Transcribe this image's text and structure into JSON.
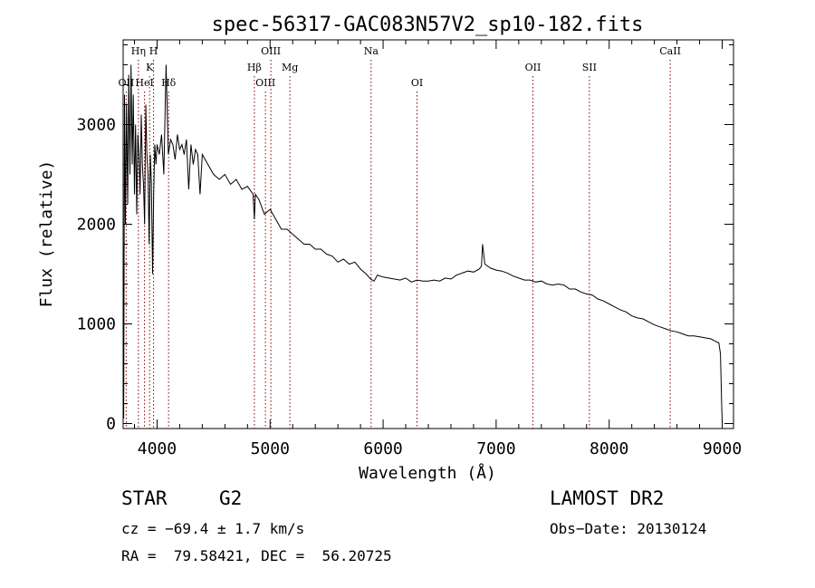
{
  "chart_data": {
    "type": "line",
    "title": "spec-56317-GAC083N57V2_sp10-182.fits",
    "xlabel": "Wavelength (Å)",
    "ylabel": "Flux (relative)",
    "xlim": [
      3700,
      9100
    ],
    "ylim": [
      -50,
      3850
    ],
    "xticks": [
      4000,
      5000,
      6000,
      7000,
      8000,
      9000
    ],
    "yticks": [
      0,
      1000,
      2000,
      3000
    ],
    "grid": false,
    "series": [
      {
        "x": [
          3700,
          3705,
          3712,
          3720,
          3730,
          3740,
          3750,
          3760,
          3770,
          3780,
          3790,
          3800,
          3810,
          3820,
          3830,
          3840,
          3850,
          3860,
          3870,
          3880,
          3890,
          3900,
          3910,
          3920,
          3930,
          3940,
          3950,
          3960,
          3970,
          3980,
          3990,
          4000,
          4020,
          4040,
          4060,
          4080,
          4100,
          4120,
          4140,
          4160,
          4180,
          4200,
          4220,
          4240,
          4260,
          4280,
          4300,
          4320,
          4340,
          4360,
          4380,
          4400,
          4450,
          4500,
          4550,
          4600,
          4650,
          4700,
          4750,
          4800,
          4850,
          4861,
          4870,
          4900,
          4950,
          5000,
          5050,
          5100,
          5150,
          5200,
          5250,
          5300,
          5350,
          5400,
          5450,
          5500,
          5550,
          5600,
          5650,
          5700,
          5750,
          5800,
          5850,
          5890,
          5920,
          5950,
          6000,
          6050,
          6100,
          6150,
          6200,
          6250,
          6300,
          6350,
          6400,
          6450,
          6500,
          6550,
          6600,
          6650,
          6700,
          6750,
          6800,
          6850,
          6870,
          6880,
          6900,
          6950,
          7000,
          7050,
          7100,
          7150,
          7200,
          7250,
          7300,
          7350,
          7400,
          7450,
          7500,
          7550,
          7600,
          7650,
          7700,
          7750,
          7800,
          7850,
          7900,
          7950,
          8000,
          8050,
          8100,
          8150,
          8200,
          8250,
          8300,
          8350,
          8400,
          8450,
          8500,
          8550,
          8600,
          8650,
          8700,
          8750,
          8800,
          8850,
          8900,
          8950,
          8970,
          8985,
          8995,
          9000
        ],
        "y": [
          1400,
          50,
          3300,
          2000,
          3200,
          2200,
          3500,
          2500,
          3600,
          2600,
          3300,
          2300,
          3000,
          2100,
          2900,
          2700,
          2300,
          3100,
          2600,
          2400,
          2000,
          3200,
          2700,
          2500,
          1800,
          2700,
          2400,
          1500,
          2300,
          2800,
          2600,
          2800,
          2700,
          2900,
          2500,
          3600,
          2700,
          2850,
          2800,
          2650,
          2900,
          2750,
          2800,
          2700,
          2850,
          2350,
          2800,
          2600,
          2750,
          2700,
          2300,
          2700,
          2600,
          2500,
          2450,
          2500,
          2400,
          2450,
          2350,
          2380,
          2300,
          2050,
          2300,
          2250,
          2100,
          2150,
          2050,
          1950,
          1950,
          1900,
          1850,
          1800,
          1800,
          1750,
          1750,
          1700,
          1680,
          1620,
          1650,
          1600,
          1620,
          1550,
          1500,
          1450,
          1430,
          1490,
          1470,
          1460,
          1450,
          1440,
          1460,
          1420,
          1440,
          1430,
          1430,
          1440,
          1430,
          1460,
          1450,
          1490,
          1510,
          1530,
          1520,
          1550,
          1580,
          1800,
          1600,
          1560,
          1540,
          1530,
          1510,
          1480,
          1460,
          1440,
          1440,
          1420,
          1430,
          1400,
          1390,
          1400,
          1390,
          1350,
          1350,
          1320,
          1300,
          1290,
          1250,
          1230,
          1200,
          1170,
          1140,
          1120,
          1080,
          1060,
          1050,
          1020,
          990,
          970,
          950,
          930,
          920,
          900,
          880,
          880,
          870,
          860,
          850,
          820,
          810,
          700,
          200,
          20
        ]
      }
    ],
    "lines": [
      {
        "label": "OII",
        "x": 3727,
        "row": 3
      },
      {
        "label": "Hη",
        "x": 3835,
        "row": 1
      },
      {
        "label": "HeI",
        "x": 3889,
        "row": 3
      },
      {
        "label": "K",
        "x": 3934,
        "row": 2
      },
      {
        "label": "H",
        "x": 3969,
        "row": 1
      },
      {
        "label": "Hδ",
        "x": 4102,
        "row": 3
      },
      {
        "label": "Hβ",
        "x": 4861,
        "row": 2
      },
      {
        "label": "OIII",
        "x": 4959,
        "row": 3
      },
      {
        "label": "OIII",
        "x": 5007,
        "row": 1
      },
      {
        "label": "Mg",
        "x": 5175,
        "row": 2
      },
      {
        "label": "Na",
        "x": 5894,
        "row": 1
      },
      {
        "label": "OI",
        "x": 6300,
        "row": 3
      },
      {
        "label": "OII",
        "x": 7325,
        "row": 2
      },
      {
        "label": "SII",
        "x": 7825,
        "row": 2
      },
      {
        "label": "CaII",
        "x": 8540,
        "row": 1
      }
    ],
    "line_color": "#8b0000"
  },
  "info": {
    "object_type": "STAR",
    "subclass": "G2",
    "survey": "LAMOST DR2",
    "cz": "cz = −69.4 ± 1.7 km/s",
    "obs_date": "Obs−Date: 20130124",
    "coords": "RA =  79.58421, DEC =  56.20725"
  }
}
